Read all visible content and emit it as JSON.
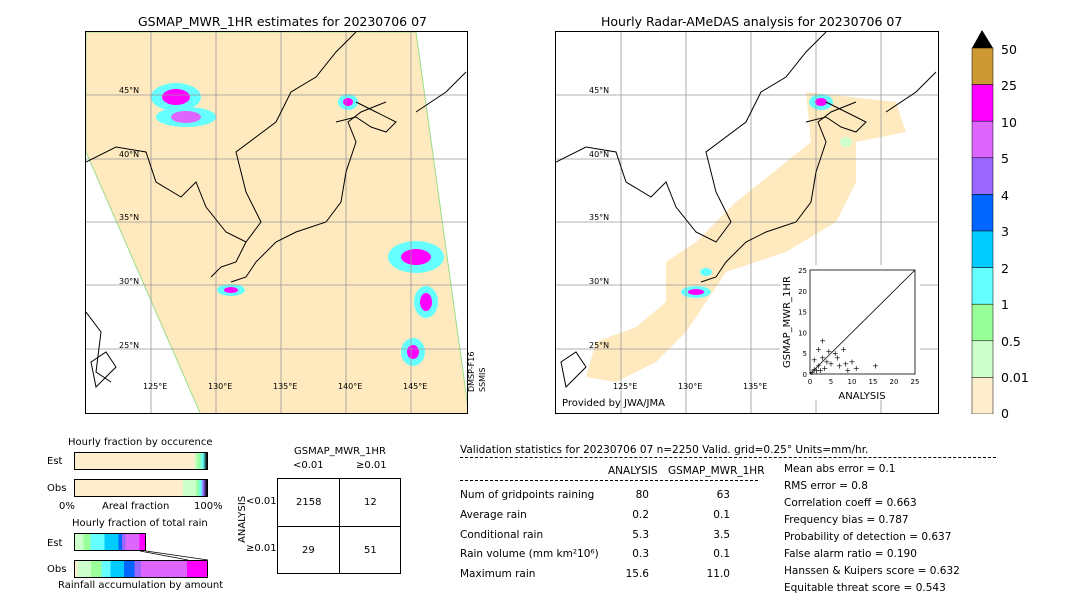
{
  "maps": {
    "left_title": "GSMAP_MWR_1HR estimates for 20230706 07",
    "right_title": "Hourly Radar-AMeDAS analysis for 20230706 07",
    "lat_labels": [
      "45°N",
      "40°N",
      "35°N",
      "30°N",
      "25°N"
    ],
    "left_lon_labels": [
      "125°E",
      "130°E",
      "135°E",
      "140°E",
      "145°E"
    ],
    "right_lon_labels": [
      "125°E",
      "130°E",
      "135°E"
    ],
    "satellite_label_1": "DMSP-F16",
    "satellite_label_2": "SSMIS",
    "provider": "Provided by JWA/JMA",
    "scatter": {
      "xlabel": "ANALYSIS",
      "ylabel": "GSMAP_MWR_1HR",
      "ticks": [
        "0",
        "5",
        "10",
        "15",
        "20",
        "25"
      ]
    }
  },
  "colorbar": {
    "labels": [
      "50",
      "25",
      "10",
      "5",
      "4",
      "3",
      "2",
      "1",
      "0.5",
      "0.01",
      "0"
    ],
    "colors": [
      "#cc9933",
      "#ff00ff",
      "#dd66ff",
      "#9966ff",
      "#0066ff",
      "#00ccff",
      "#66ffff",
      "#99ff99",
      "#ccffcc",
      "#ffeecc"
    ],
    "top_color": "#000000"
  },
  "fraction_charts": {
    "occurrence_title": "Hourly fraction by occurence",
    "total_title": "Hourly fraction of total rain",
    "est_label": "Est",
    "obs_label": "Obs",
    "axis_left": "0%",
    "axis_mid": "Areal fraction",
    "axis_right": "100%",
    "accum_label": "Rainfall accumulation by amount"
  },
  "contingency": {
    "title": "GSMAP_MWR_1HR",
    "col_lt": "<0.01",
    "col_ge": "≥0.01",
    "row_axis": "ANALYSIS",
    "row_lt": "<0.01",
    "row_ge": "≥0.01",
    "cells": [
      "2158",
      "12",
      "29",
      "51"
    ]
  },
  "validation": {
    "header": "Validation statistics for 20230706 07  n=2250 Valid. grid=0.25° Units=mm/hr.",
    "col_analysis": "ANALYSIS",
    "col_gsmap": "GSMAP_MWR_1HR",
    "rows": [
      {
        "label": "Num of gridpoints raining",
        "analysis": "80",
        "gsmap": "63"
      },
      {
        "label": "Average rain",
        "analysis": "0.2",
        "gsmap": "0.1"
      },
      {
        "label": "Conditional rain",
        "analysis": "5.3",
        "gsmap": "3.5"
      },
      {
        "label": "Rain volume (mm km²10⁶)",
        "analysis": "0.3",
        "gsmap": "0.1"
      },
      {
        "label": "Maximum rain",
        "analysis": "15.6",
        "gsmap": "11.0"
      }
    ],
    "scores": [
      "Mean abs error =    0.1",
      "RMS error =    0.8",
      "Correlation coeff =  0.663",
      "Frequency bias =  0.787",
      "Probability of detection =  0.637",
      "False alarm ratio =  0.190",
      "Hanssen & Kuipers score =  0.632",
      "Equitable threat score =  0.543"
    ]
  },
  "chart_data": {
    "type": "scatter",
    "title": "",
    "xlabel": "ANALYSIS",
    "ylabel": "GSMAP_MWR_1HR",
    "xlim": [
      0,
      25
    ],
    "ylim": [
      0,
      25
    ],
    "x": [
      0.5,
      1.0,
      1.5,
      2.0,
      2.5,
      3.0,
      3.5,
      4.0,
      5.0,
      6.0,
      7.0,
      8.0,
      9.0,
      10.0,
      11.0,
      15.6,
      1.0,
      2.0,
      3.0,
      4.5,
      6.5,
      8.5
    ],
    "y": [
      0.5,
      1.2,
      0.8,
      2.0,
      1.0,
      4.0,
      1.5,
      3.0,
      2.5,
      5.0,
      2.0,
      6.0,
      1.0,
      3.0,
      1.5,
      2.0,
      3.5,
      6.0,
      8.0,
      5.5,
      4.0,
      2.5
    ]
  }
}
